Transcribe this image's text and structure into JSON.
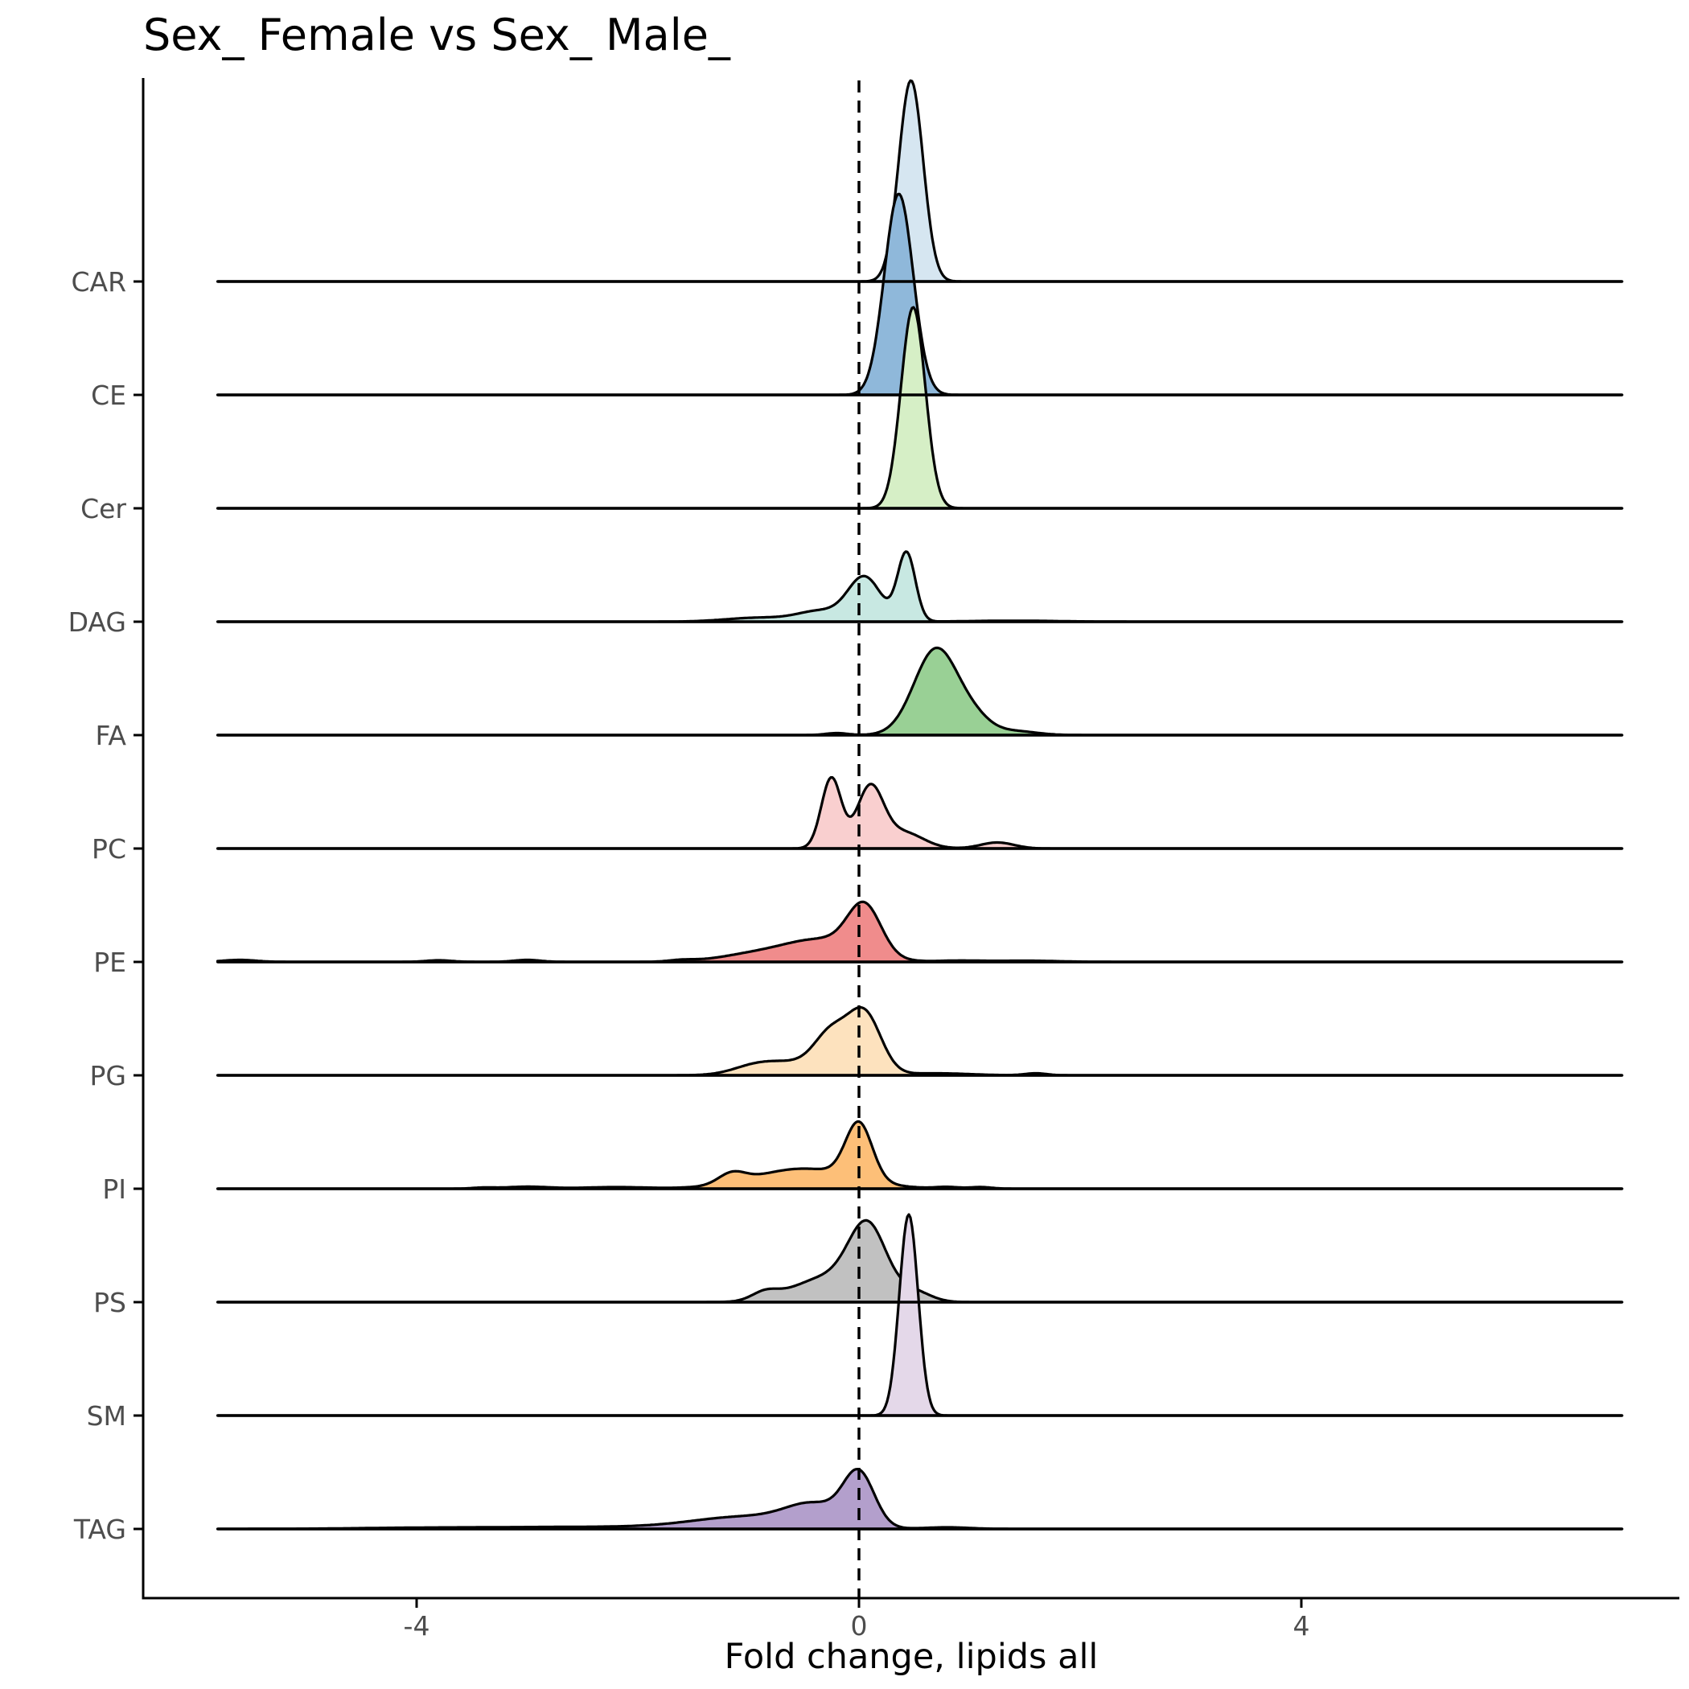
{
  "chart_data": {
    "type": "ridgeline",
    "title": "Sex_ Female vs Sex_ Male_",
    "xlabel": "Fold change, lipids all",
    "ylabel": "",
    "xlim": [
      -6.4,
      7.5
    ],
    "x_range_drawn": [
      -5.8,
      6.9
    ],
    "xticks": [
      -4,
      0,
      4
    ],
    "xtick_labels": [
      "-4",
      "0",
      "4"
    ],
    "reference_line": {
      "x": 0,
      "style": "dashed"
    },
    "grid": false,
    "legend": "none",
    "series": [
      {
        "name": "CAR",
        "color": "#d6e6f1",
        "peaks": [
          [
            0.47,
            1.0,
            0.11
          ]
        ]
      },
      {
        "name": "CE",
        "color": "#8fb8da",
        "peaks": [
          [
            0.36,
            1.0,
            0.13
          ]
        ]
      },
      {
        "name": "Cer",
        "color": "#d6efc6",
        "peaks": [
          [
            0.49,
            1.0,
            0.11
          ]
        ]
      },
      {
        "name": "DAG",
        "color": "#c8e8e2",
        "peaks": [
          [
            0.43,
            0.34,
            0.08
          ],
          [
            0.05,
            0.22,
            0.15
          ],
          [
            -0.35,
            0.05,
            0.2
          ],
          [
            -0.9,
            0.02,
            0.3
          ],
          [
            1.4,
            0.005,
            0.4
          ]
        ]
      },
      {
        "name": "FA",
        "color": "#99d095",
        "peaks": [
          [
            0.7,
            0.43,
            0.2
          ],
          [
            1.05,
            0.06,
            0.15
          ],
          [
            1.4,
            0.02,
            0.2
          ],
          [
            -0.2,
            0.01,
            0.1
          ]
        ]
      },
      {
        "name": "PC",
        "color": "#f9cfcf",
        "peaks": [
          [
            -0.25,
            0.35,
            0.09
          ],
          [
            0.1,
            0.3,
            0.12
          ],
          [
            0.4,
            0.08,
            0.18
          ],
          [
            1.25,
            0.03,
            0.15
          ]
        ]
      },
      {
        "name": "PE",
        "color": "#f08c8c",
        "peaks": [
          [
            0.05,
            0.24,
            0.15
          ],
          [
            -0.35,
            0.11,
            0.35
          ],
          [
            -1.0,
            0.03,
            0.3
          ],
          [
            -5.6,
            0.01,
            0.15
          ],
          [
            -3.8,
            0.008,
            0.12
          ],
          [
            -3.0,
            0.01,
            0.12
          ],
          [
            -1.6,
            0.008,
            0.12
          ],
          [
            0.9,
            0.006,
            0.2
          ],
          [
            1.5,
            0.006,
            0.3
          ]
        ]
      },
      {
        "name": "PG",
        "color": "#fde2be",
        "peaks": [
          [
            0.05,
            0.3,
            0.15
          ],
          [
            -0.25,
            0.18,
            0.15
          ],
          [
            -0.6,
            0.06,
            0.3
          ],
          [
            -0.95,
            0.03,
            0.2
          ],
          [
            0.7,
            0.01,
            0.3
          ],
          [
            1.6,
            0.01,
            0.1
          ]
        ]
      },
      {
        "name": "PI",
        "color": "#fdbf78",
        "peaks": [
          [
            0.0,
            0.28,
            0.12
          ],
          [
            -0.5,
            0.1,
            0.45
          ],
          [
            -1.15,
            0.05,
            0.12
          ],
          [
            -3.0,
            0.01,
            0.2
          ],
          [
            -2.2,
            0.008,
            0.3
          ],
          [
            0.8,
            0.008,
            0.1
          ],
          [
            1.1,
            0.008,
            0.1
          ],
          [
            -3.4,
            0.005,
            0.1
          ]
        ]
      },
      {
        "name": "PS",
        "color": "#c1c1c1",
        "peaks": [
          [
            0.08,
            0.35,
            0.17
          ],
          [
            -0.3,
            0.12,
            0.3
          ],
          [
            -0.85,
            0.04,
            0.12
          ],
          [
            0.5,
            0.05,
            0.15
          ]
        ]
      },
      {
        "name": "SM",
        "color": "#e4d8e9",
        "peaks": [
          [
            0.45,
            1.0,
            0.085
          ]
        ]
      },
      {
        "name": "TAG",
        "color": "#b39fcc",
        "peaks": [
          [
            0.0,
            0.26,
            0.14
          ],
          [
            -0.4,
            0.1,
            0.25
          ],
          [
            -1.0,
            0.06,
            0.5
          ],
          [
            -2.5,
            0.01,
            0.8
          ],
          [
            -4.0,
            0.005,
            0.6
          ],
          [
            0.8,
            0.008,
            0.2
          ]
        ]
      }
    ]
  }
}
